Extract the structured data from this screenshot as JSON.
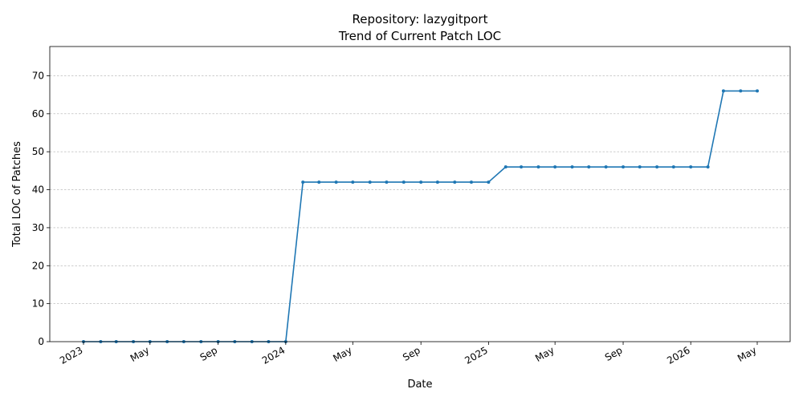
{
  "chart_data": {
    "type": "line",
    "title_line1": "Repository: lazygitport",
    "title_line2": "Trend of Current Patch LOC",
    "xlabel": "Date",
    "ylabel": "Total LOC of Patches",
    "ylim": [
      0,
      77.7
    ],
    "yticks": [
      0,
      10,
      20,
      30,
      40,
      50,
      60,
      70
    ],
    "xticks": [
      {
        "date": "2023-01-01",
        "label": "2023"
      },
      {
        "date": "2023-05-01",
        "label": "May"
      },
      {
        "date": "2023-09-01",
        "label": "Sep"
      },
      {
        "date": "2024-01-01",
        "label": "2024"
      },
      {
        "date": "2024-05-01",
        "label": "May"
      },
      {
        "date": "2024-09-01",
        "label": "Sep"
      },
      {
        "date": "2025-01-01",
        "label": "2025"
      },
      {
        "date": "2025-05-01",
        "label": "May"
      },
      {
        "date": "2025-09-01",
        "label": "Sep"
      },
      {
        "date": "2026-01-01",
        "label": "2026"
      },
      {
        "date": "2026-05-01",
        "label": "May"
      }
    ],
    "grid": "y",
    "legend": "none",
    "series": [
      {
        "color": "#1f77b4",
        "x": [
          "2023-01-01",
          "2023-02-01",
          "2023-03-01",
          "2023-04-01",
          "2023-05-01",
          "2023-06-01",
          "2023-07-01",
          "2023-08-01",
          "2023-09-01",
          "2023-10-01",
          "2023-11-01",
          "2023-12-01",
          "2024-01-01",
          "2024-02-01",
          "2024-03-01",
          "2024-04-01",
          "2024-05-01",
          "2024-06-01",
          "2024-07-01",
          "2024-08-01",
          "2024-09-01",
          "2024-10-01",
          "2024-11-01",
          "2024-12-01",
          "2025-01-01",
          "2025-02-01",
          "2025-03-01",
          "2025-04-01",
          "2025-05-01",
          "2025-06-01",
          "2025-07-01",
          "2025-08-01",
          "2025-09-01",
          "2025-10-01",
          "2025-11-01",
          "2025-12-01",
          "2026-01-01",
          "2026-02-01",
          "2026-03-01",
          "2026-04-01",
          "2026-05-01"
        ],
        "y": [
          0,
          0,
          0,
          0,
          0,
          0,
          0,
          0,
          0,
          0,
          0,
          0,
          0,
          42,
          42,
          42,
          42,
          42,
          42,
          42,
          42,
          42,
          42,
          42,
          42,
          46,
          46,
          46,
          46,
          46,
          46,
          46,
          46,
          46,
          46,
          46,
          46,
          46,
          66,
          66,
          66
        ]
      }
    ]
  }
}
